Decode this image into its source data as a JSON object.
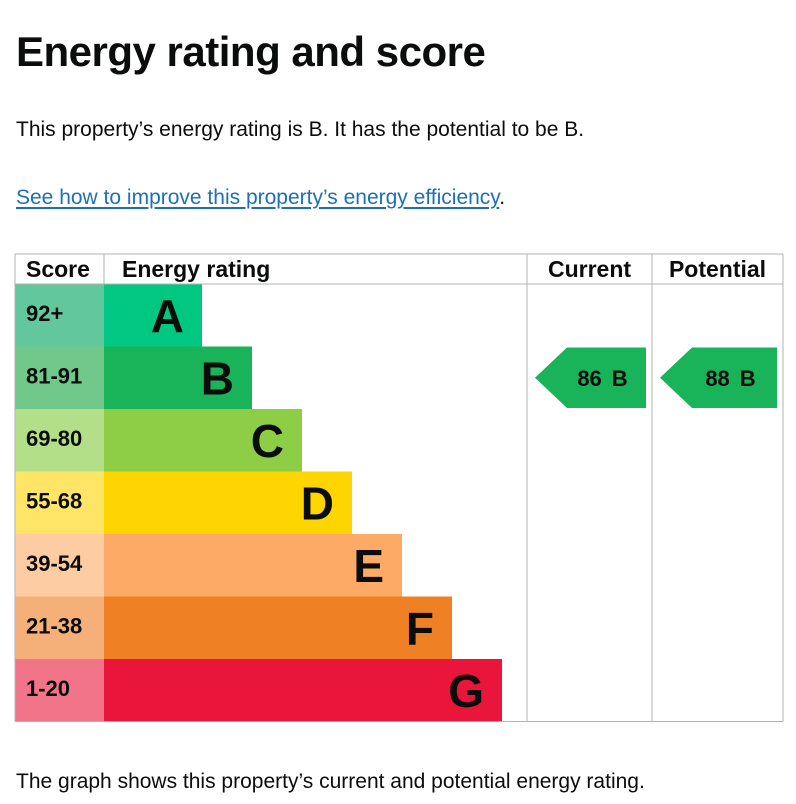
{
  "page": {
    "title": "Energy rating and score",
    "intro": "This property’s energy rating is B. It has the potential to be B.",
    "link_text": "See how to improve this property’s energy efficiency",
    "link_suffix": ".",
    "footer": "The graph shows this property’s current and potential energy rating."
  },
  "chart_data": {
    "type": "table",
    "headers": {
      "score": "Score",
      "rating": "Energy rating",
      "current": "Current",
      "potential": "Potential"
    },
    "bands": [
      {
        "score": "92+",
        "letter": "A",
        "color": "#00c781",
        "score_color": "#63c79e"
      },
      {
        "score": "81-91",
        "letter": "B",
        "color": "#19b459",
        "score_color": "#70c98b"
      },
      {
        "score": "69-80",
        "letter": "C",
        "color": "#8dce46",
        "score_color": "#b2df88"
      },
      {
        "score": "55-68",
        "letter": "D",
        "color": "#ffd500",
        "score_color": "#ffe566"
      },
      {
        "score": "39-54",
        "letter": "E",
        "color": "#fcaa65",
        "score_color": "#fdcca3"
      },
      {
        "score": "21-38",
        "letter": "F",
        "color": "#ef8023",
        "score_color": "#f5b079"
      },
      {
        "score": "1-20",
        "letter": "G",
        "color": "#e9153b",
        "score_color": "#f27489"
      }
    ],
    "current": {
      "value": 86,
      "letter": "B",
      "color": "#19b459"
    },
    "potential": {
      "value": 88,
      "letter": "B",
      "color": "#19b459"
    }
  }
}
